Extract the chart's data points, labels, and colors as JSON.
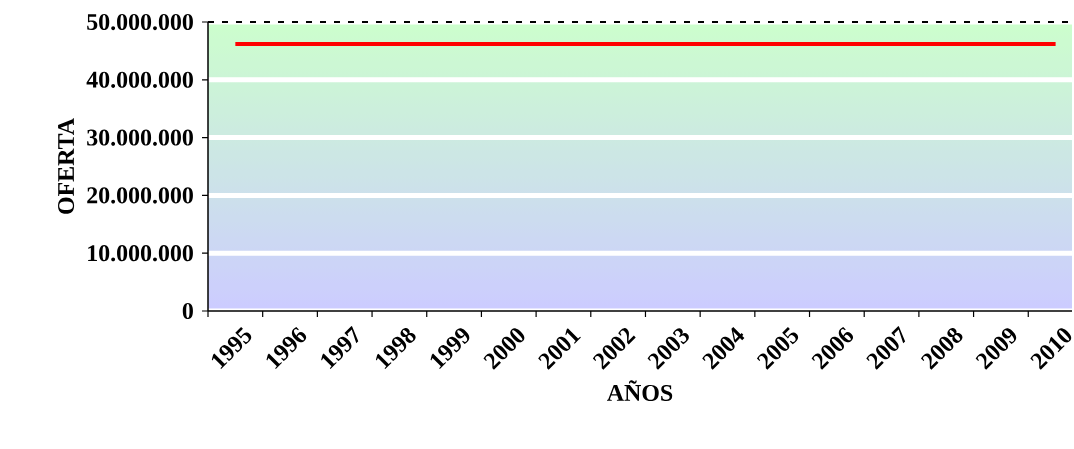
{
  "chart_data": {
    "type": "line",
    "xlabel": "AÑOS",
    "ylabel": "OFERTA",
    "categories": [
      "1995",
      "1996",
      "1997",
      "1998",
      "1999",
      "2000",
      "2001",
      "2002",
      "2003",
      "2004",
      "2005",
      "2006",
      "2007",
      "2008",
      "2009",
      "2010"
    ],
    "series": [
      {
        "color": "#ff0000",
        "values": [
          46200000,
          46200000,
          46200000,
          46200000,
          46200000,
          46200000,
          46200000,
          46200000,
          46200000,
          46200000,
          46200000,
          46200000,
          46200000,
          46200000,
          46200000,
          46200000
        ]
      }
    ],
    "ylim": [
      0,
      50000000
    ],
    "yticks": [
      {
        "value": 0,
        "label": "0"
      },
      {
        "value": 10000000,
        "label": "10.000.000"
      },
      {
        "value": 20000000,
        "label": "20.000.000"
      },
      {
        "value": 30000000,
        "label": "30.000.000"
      },
      {
        "value": 40000000,
        "label": "40.000.000"
      },
      {
        "value": 50000000,
        "label": "50.000.000"
      }
    ],
    "grid": "y"
  }
}
